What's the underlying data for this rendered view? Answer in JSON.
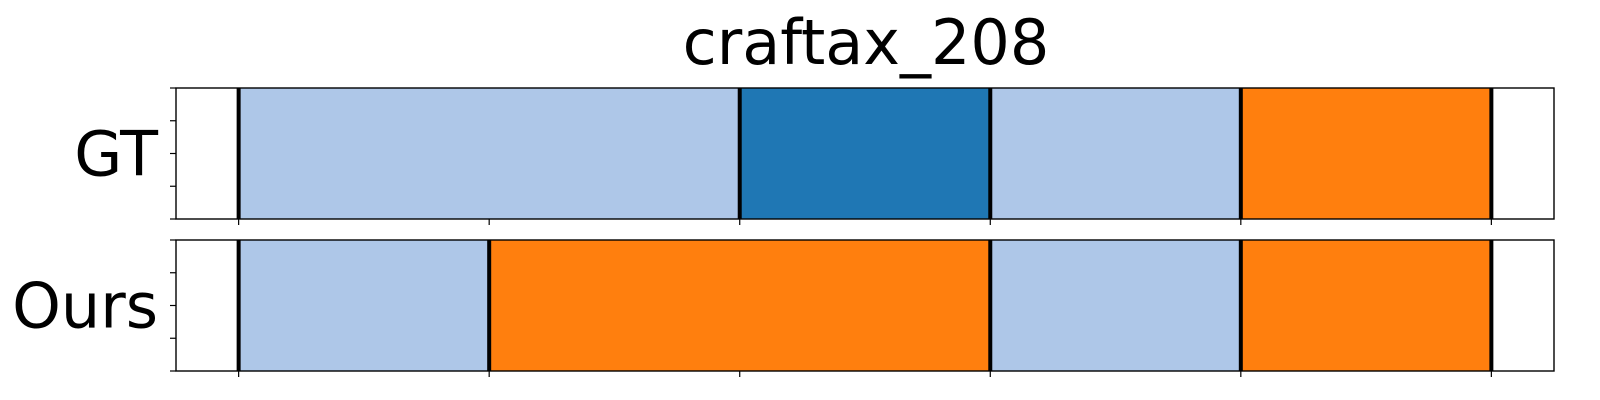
{
  "chart_data": {
    "type": "segmentation-timeline",
    "title": "craftax_208",
    "xlim": [
      0,
      11
    ],
    "boundaries": [
      0.5,
      4.5,
      6.5,
      8.5,
      10.5
    ],
    "colors": {
      "light-blue": "#aec7e8",
      "dark-blue": "#1f77b4",
      "orange": "#ff7f0e",
      "boundary": "#000000"
    },
    "rows": [
      {
        "label": "GT",
        "segments": [
          {
            "start": 0.5,
            "end": 4.5,
            "color": "light-blue"
          },
          {
            "start": 4.5,
            "end": 6.5,
            "color": "dark-blue"
          },
          {
            "start": 6.5,
            "end": 8.5,
            "color": "light-blue"
          },
          {
            "start": 8.5,
            "end": 10.5,
            "color": "orange"
          }
        ],
        "boundaries": [
          0.5,
          4.5,
          6.5,
          8.5,
          10.5
        ]
      },
      {
        "label": "Ours",
        "segments": [
          {
            "start": 0.5,
            "end": 2.5,
            "color": "light-blue"
          },
          {
            "start": 2.5,
            "end": 6.5,
            "color": "orange"
          },
          {
            "start": 6.5,
            "end": 8.5,
            "color": "light-blue"
          },
          {
            "start": 8.5,
            "end": 10.5,
            "color": "orange"
          }
        ],
        "boundaries": [
          0.5,
          2.5,
          6.5,
          8.5,
          10.5
        ]
      }
    ],
    "x_ticks": [
      0.5,
      2.5,
      4.5,
      6.5,
      8.5,
      10.5
    ],
    "y_minor_ticks": 5
  }
}
